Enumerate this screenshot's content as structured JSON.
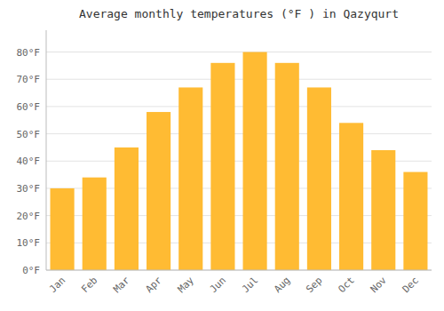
{
  "chart_data": {
    "type": "bar",
    "title": "Average monthly temperatures (°F ) in Qazyqurt",
    "categories": [
      "Jan",
      "Feb",
      "Mar",
      "Apr",
      "May",
      "Jun",
      "Jul",
      "Aug",
      "Sep",
      "Oct",
      "Nov",
      "Dec"
    ],
    "values": [
      30,
      34,
      45,
      58,
      67,
      76,
      80,
      76,
      67,
      54,
      44,
      36
    ],
    "color": "#FFBB33",
    "ylim": [
      0,
      88
    ],
    "yticks": [
      {
        "value": 0,
        "label": "0°F"
      },
      {
        "value": 10,
        "label": "10°F"
      },
      {
        "value": 20,
        "label": "20°F"
      },
      {
        "value": 30,
        "label": "30°F"
      },
      {
        "value": 40,
        "label": "40°F"
      },
      {
        "value": 50,
        "label": "50°F"
      },
      {
        "value": 60,
        "label": "60°F"
      },
      {
        "value": 70,
        "label": "70°F"
      },
      {
        "value": 80,
        "label": "80°F"
      }
    ],
    "grid": true
  }
}
